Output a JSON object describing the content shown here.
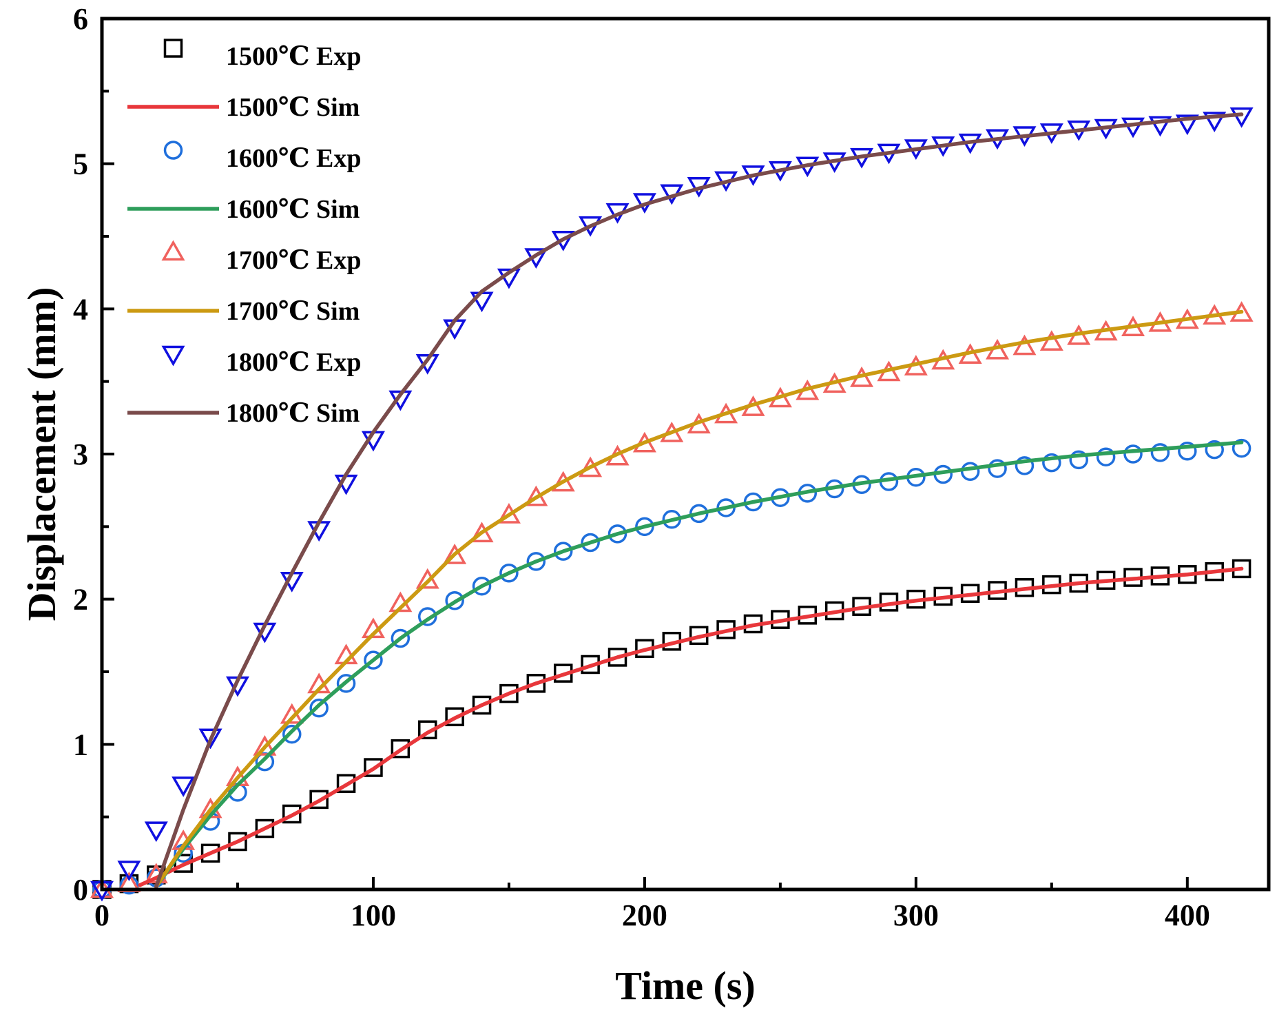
{
  "chart_data": {
    "type": "line",
    "title": "",
    "xlabel": "Time (s)",
    "ylabel": "Displacement (mm)",
    "xlim": [
      0,
      430
    ],
    "ylim": [
      0,
      6
    ],
    "xticks": [
      0,
      100,
      200,
      300,
      400
    ],
    "yticks": [
      0,
      1,
      2,
      3,
      4,
      5,
      6
    ],
    "grid": false,
    "legend_position": "top-left",
    "series": [
      {
        "name": "1500℃ Exp",
        "kind": "marker",
        "marker": "square",
        "color": "#000000",
        "x": [
          0,
          10,
          20,
          30,
          40,
          50,
          60,
          70,
          80,
          90,
          100,
          110,
          120,
          130,
          140,
          150,
          160,
          170,
          180,
          190,
          200,
          210,
          220,
          230,
          240,
          250,
          260,
          270,
          280,
          290,
          300,
          310,
          320,
          330,
          340,
          350,
          360,
          370,
          380,
          390,
          400,
          410,
          420
        ],
        "y": [
          0,
          0.04,
          0.1,
          0.18,
          0.25,
          0.33,
          0.42,
          0.52,
          0.62,
          0.73,
          0.84,
          0.97,
          1.1,
          1.19,
          1.27,
          1.35,
          1.42,
          1.49,
          1.55,
          1.6,
          1.66,
          1.71,
          1.75,
          1.79,
          1.83,
          1.86,
          1.89,
          1.92,
          1.95,
          1.98,
          2.0,
          2.02,
          2.04,
          2.06,
          2.08,
          2.1,
          2.11,
          2.13,
          2.15,
          2.16,
          2.17,
          2.19,
          2.21
        ]
      },
      {
        "name": "1500℃ Sim",
        "kind": "line",
        "color": "#e8373b",
        "x": [
          14,
          20,
          30,
          40,
          50,
          60,
          70,
          80,
          90,
          100,
          110,
          120,
          130,
          140,
          150,
          160,
          170,
          180,
          190,
          200,
          220,
          240,
          260,
          280,
          300,
          320,
          340,
          360,
          380,
          400,
          420
        ],
        "y": [
          0.03,
          0.08,
          0.17,
          0.25,
          0.33,
          0.42,
          0.51,
          0.61,
          0.72,
          0.83,
          0.96,
          1.08,
          1.18,
          1.27,
          1.35,
          1.42,
          1.48,
          1.54,
          1.6,
          1.65,
          1.74,
          1.82,
          1.88,
          1.94,
          1.99,
          2.03,
          2.07,
          2.11,
          2.14,
          2.17,
          2.21
        ]
      },
      {
        "name": "1600℃ Exp",
        "kind": "marker",
        "marker": "circle",
        "color": "#1f6fdc",
        "x": [
          0,
          10,
          20,
          30,
          40,
          50,
          60,
          70,
          80,
          90,
          100,
          110,
          120,
          130,
          140,
          150,
          160,
          170,
          180,
          190,
          200,
          210,
          220,
          230,
          240,
          250,
          260,
          270,
          280,
          290,
          300,
          310,
          320,
          330,
          340,
          350,
          360,
          370,
          380,
          390,
          400,
          410,
          420
        ],
        "y": [
          0,
          0.03,
          0.08,
          0.25,
          0.47,
          0.67,
          0.88,
          1.07,
          1.25,
          1.42,
          1.58,
          1.73,
          1.88,
          1.99,
          2.09,
          2.18,
          2.26,
          2.33,
          2.39,
          2.45,
          2.5,
          2.55,
          2.59,
          2.63,
          2.67,
          2.7,
          2.73,
          2.76,
          2.79,
          2.81,
          2.84,
          2.86,
          2.88,
          2.9,
          2.92,
          2.94,
          2.96,
          2.98,
          3.0,
          3.01,
          3.02,
          3.03,
          3.04
        ]
      },
      {
        "name": "1600℃ Sim",
        "kind": "line",
        "color": "#2e9e5b",
        "x": [
          20,
          30,
          40,
          50,
          60,
          70,
          80,
          90,
          100,
          110,
          120,
          130,
          140,
          150,
          160,
          170,
          180,
          190,
          200,
          220,
          240,
          260,
          280,
          300,
          320,
          340,
          360,
          380,
          400,
          420
        ],
        "y": [
          0.02,
          0.28,
          0.51,
          0.72,
          0.9,
          1.09,
          1.27,
          1.43,
          1.58,
          1.73,
          1.86,
          1.98,
          2.09,
          2.18,
          2.26,
          2.33,
          2.39,
          2.45,
          2.5,
          2.59,
          2.67,
          2.74,
          2.8,
          2.85,
          2.9,
          2.95,
          2.99,
          3.02,
          3.05,
          3.08
        ]
      },
      {
        "name": "1700℃ Exp",
        "kind": "marker",
        "marker": "triangle-up",
        "color": "#f0625e",
        "x": [
          0,
          10,
          20,
          30,
          40,
          50,
          60,
          70,
          80,
          90,
          100,
          110,
          120,
          130,
          140,
          150,
          160,
          170,
          180,
          190,
          200,
          210,
          220,
          230,
          240,
          250,
          260,
          270,
          280,
          290,
          300,
          310,
          320,
          330,
          340,
          350,
          360,
          370,
          380,
          390,
          400,
          410,
          420
        ],
        "y": [
          0,
          0.04,
          0.1,
          0.33,
          0.55,
          0.77,
          0.98,
          1.2,
          1.41,
          1.61,
          1.79,
          1.97,
          2.13,
          2.3,
          2.45,
          2.58,
          2.7,
          2.8,
          2.9,
          2.98,
          3.07,
          3.14,
          3.2,
          3.27,
          3.32,
          3.38,
          3.43,
          3.48,
          3.52,
          3.56,
          3.6,
          3.64,
          3.68,
          3.71,
          3.74,
          3.77,
          3.81,
          3.84,
          3.87,
          3.9,
          3.92,
          3.95,
          3.97
        ]
      },
      {
        "name": "1700℃ Sim",
        "kind": "line",
        "color": "#cc9a12",
        "x": [
          20,
          30,
          40,
          50,
          60,
          70,
          80,
          90,
          100,
          110,
          120,
          130,
          140,
          150,
          160,
          170,
          180,
          190,
          200,
          220,
          240,
          260,
          280,
          300,
          320,
          340,
          360,
          380,
          400,
          420
        ],
        "y": [
          0.02,
          0.3,
          0.55,
          0.77,
          0.98,
          1.18,
          1.38,
          1.57,
          1.76,
          1.94,
          2.12,
          2.31,
          2.46,
          2.58,
          2.7,
          2.81,
          2.91,
          3.0,
          3.08,
          3.22,
          3.34,
          3.45,
          3.54,
          3.62,
          3.7,
          3.77,
          3.83,
          3.88,
          3.93,
          3.98
        ]
      },
      {
        "name": "1800℃ Exp",
        "kind": "marker",
        "marker": "triangle-down",
        "color": "#1010e0",
        "x": [
          0,
          10,
          20,
          30,
          40,
          50,
          60,
          70,
          80,
          90,
          100,
          110,
          120,
          130,
          140,
          150,
          160,
          170,
          180,
          190,
          200,
          210,
          220,
          230,
          240,
          250,
          260,
          270,
          280,
          290,
          300,
          310,
          320,
          330,
          340,
          350,
          360,
          370,
          380,
          390,
          400,
          410,
          420
        ],
        "y": [
          0,
          0.14,
          0.41,
          0.72,
          1.05,
          1.41,
          1.78,
          2.13,
          2.48,
          2.8,
          3.1,
          3.38,
          3.63,
          3.87,
          4.06,
          4.22,
          4.36,
          4.48,
          4.58,
          4.67,
          4.74,
          4.8,
          4.85,
          4.89,
          4.93,
          4.96,
          4.99,
          5.02,
          5.05,
          5.08,
          5.11,
          5.13,
          5.15,
          5.18,
          5.2,
          5.22,
          5.24,
          5.25,
          5.26,
          5.27,
          5.28,
          5.3,
          5.33
        ]
      },
      {
        "name": "1800℃ Sim",
        "kind": "line",
        "color": "#7a4b4b",
        "x": [
          20,
          30,
          40,
          50,
          60,
          70,
          80,
          90,
          100,
          110,
          120,
          130,
          140,
          150,
          160,
          170,
          180,
          190,
          200,
          220,
          240,
          260,
          280,
          300,
          320,
          340,
          360,
          380,
          400,
          420
        ],
        "y": [
          0.02,
          0.55,
          1.03,
          1.44,
          1.82,
          2.18,
          2.53,
          2.86,
          3.15,
          3.41,
          3.65,
          3.92,
          4.12,
          4.25,
          4.37,
          4.48,
          4.57,
          4.65,
          4.72,
          4.83,
          4.92,
          4.99,
          5.05,
          5.1,
          5.15,
          5.19,
          5.23,
          5.27,
          5.31,
          5.34
        ]
      }
    ]
  }
}
